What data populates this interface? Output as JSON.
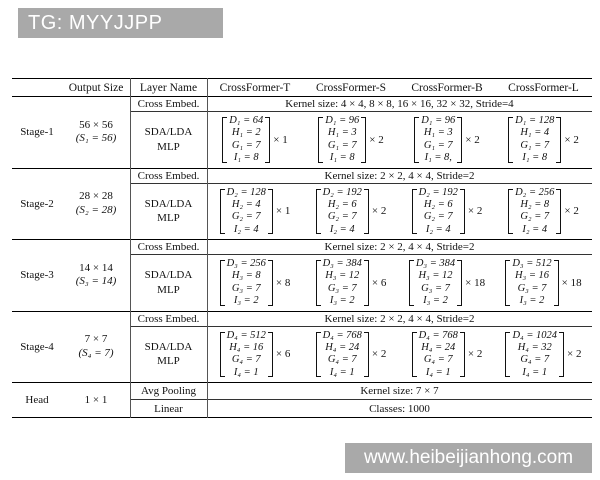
{
  "watermarks": {
    "top": "TG: MYYJJPP",
    "bottom": "www.heibeijianhong.com"
  },
  "colors": {
    "banner_bg": "#a9a9a9",
    "banner_text": "#ffffff",
    "rule": "#000000"
  },
  "table": {
    "headers": {
      "output_size": "Output Size",
      "layer_name": "Layer Name",
      "model_t": "CrossFormer-T",
      "model_s": "CrossFormer-S",
      "model_b": "CrossFormer-B",
      "model_l": "CrossFormer-L"
    },
    "stages": [
      {
        "name": "Stage-1",
        "output_size": "56 × 56",
        "output_sub": "(S₁ = 56)",
        "cross_embed_label": "Cross Embed.",
        "cross_embed_value": "Kernel size: 4 × 4, 8 × 8, 16 × 16, 32 × 32, Stride=4",
        "layer_label": [
          "SDA/LDA",
          "MLP"
        ],
        "matrices": [
          {
            "rows": [
              "D₁ = 64",
              "H₁ = 2",
              "G₁ = 7",
              "I₁ = 8"
            ],
            "mult": "× 1"
          },
          {
            "rows": [
              "D₁ = 96",
              "H₁ = 3",
              "G₁ = 7",
              "I₁ = 8"
            ],
            "mult": "× 2"
          },
          {
            "rows": [
              "D₁ = 96",
              "H₁ = 3",
              "G₁ = 7",
              "I₁ = 8,"
            ],
            "mult": "× 2"
          },
          {
            "rows": [
              "D₁ = 128",
              "H₁ = 4",
              "G₁ = 7",
              "I₁ = 8"
            ],
            "mult": "× 2"
          }
        ]
      },
      {
        "name": "Stage-2",
        "output_size": "28 × 28",
        "output_sub": "(S₂ = 28)",
        "cross_embed_label": "Cross Embed.",
        "cross_embed_value": "Kernel size: 2 × 2, 4 × 4, Stride=2",
        "layer_label": [
          "SDA/LDA",
          "MLP"
        ],
        "matrices": [
          {
            "rows": [
              "D₂ = 128",
              "H₂ = 4",
              "G₂ = 7",
              "I₂ = 4"
            ],
            "mult": "× 1"
          },
          {
            "rows": [
              "D₂ = 192",
              "H₂ = 6",
              "G₂ = 7",
              "I₂ = 4"
            ],
            "mult": "× 2"
          },
          {
            "rows": [
              "D₂ = 192",
              "H₂ = 6",
              "G₂ = 7",
              "I₂ = 4"
            ],
            "mult": "× 2"
          },
          {
            "rows": [
              "D₂ = 256",
              "H₂ = 8",
              "G₂ = 7",
              "I₂ = 4"
            ],
            "mult": "× 2"
          }
        ]
      },
      {
        "name": "Stage-3",
        "output_size": "14 × 14",
        "output_sub": "(S₃ = 14)",
        "cross_embed_label": "Cross Embed.",
        "cross_embed_value": "Kernel size: 2 × 2, 4 × 4, Stride=2",
        "layer_label": [
          "SDA/LDA",
          "MLP"
        ],
        "matrices": [
          {
            "rows": [
              "D₃ = 256",
              "H₃ = 8",
              "G₃ = 7",
              "I₃ = 2"
            ],
            "mult": "× 8"
          },
          {
            "rows": [
              "D₃ = 384",
              "H₃ = 12",
              "G₃ = 7",
              "I₃ = 2"
            ],
            "mult": "× 6"
          },
          {
            "rows": [
              "D₃ = 384",
              "H₃ = 12",
              "G₃ = 7",
              "I₃ = 2"
            ],
            "mult": "× 18"
          },
          {
            "rows": [
              "D₃ = 512",
              "H₃ = 16",
              "G₃ = 7",
              "I₃ = 2"
            ],
            "mult": "× 18"
          }
        ]
      },
      {
        "name": "Stage-4",
        "output_size": "7 × 7",
        "output_sub": "(S₄ = 7)",
        "cross_embed_label": "Cross Embed.",
        "cross_embed_value": "Kernel size: 2 × 2, 4 × 4, Stride=2",
        "layer_label": [
          "SDA/LDA",
          "MLP"
        ],
        "matrices": [
          {
            "rows": [
              "D₄ = 512",
              "H₄ = 16",
              "G₄ = 7",
              "I₄ = 1"
            ],
            "mult": "× 6"
          },
          {
            "rows": [
              "D₄ = 768",
              "H₄ = 24",
              "G₄ = 7",
              "I₄ = 1"
            ],
            "mult": "× 2"
          },
          {
            "rows": [
              "D₄ = 768",
              "H₄ = 24",
              "G₄ = 7",
              "I₄ = 1"
            ],
            "mult": "× 2"
          },
          {
            "rows": [
              "D₄ = 1024",
              "H₄ = 32",
              "G₄ = 7",
              "I₄ = 1"
            ],
            "mult": "× 2"
          }
        ]
      }
    ],
    "head": {
      "name": "Head",
      "output_size": "1 × 1",
      "rows": [
        {
          "label": "Avg Pooling",
          "value": "Kernel size: 7 × 7"
        },
        {
          "label": "Linear",
          "value": "Classes: 1000"
        }
      ]
    }
  }
}
